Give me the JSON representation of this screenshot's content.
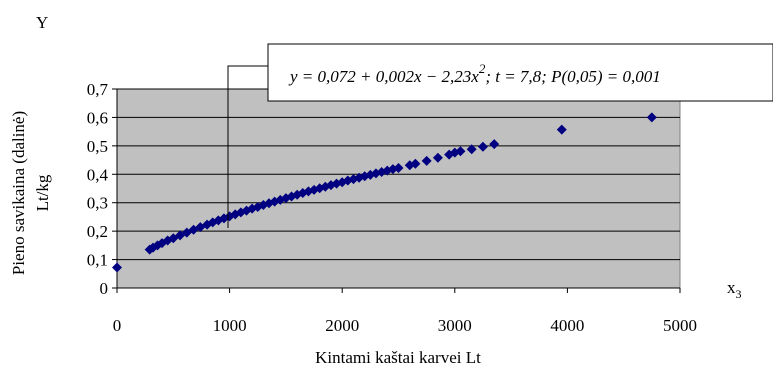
{
  "chart_data": {
    "type": "scatter",
    "title": "",
    "y_axis_letter": "Y",
    "ylabel_line1": "Pieno savikaina (dalinė)",
    "ylabel_line2": "Lt/kg",
    "xlabel": "Kintami kaštai karvei Lt",
    "x_variable": "x",
    "x_variable_subscript": "3",
    "equation": {
      "part1": "y = 0,072 + 0,002x − 2,23x",
      "exponent": "2",
      "part2": "; t = 7,8; P(0,05) = 0,001"
    },
    "xlim": [
      0,
      5000
    ],
    "ylim": [
      0,
      0.7
    ],
    "x_ticks": [
      0,
      1000,
      2000,
      3000,
      4000,
      5000
    ],
    "x_tick_labels": [
      "0",
      "1000",
      "2000",
      "3000",
      "4000",
      "5000"
    ],
    "y_ticks": [
      0,
      0.1,
      0.2,
      0.3,
      0.4,
      0.5,
      0.6,
      0.7
    ],
    "y_tick_labels": [
      "0",
      "0,1",
      "0,2",
      "0,3",
      "0,4",
      "0,5",
      "0,6",
      "0,7"
    ],
    "grid": "horizontal",
    "plot_background": "#c0c0c0",
    "marker_color": "#000080",
    "marker_shape": "diamond",
    "series": [
      {
        "points": [
          [
            0,
            0.072
          ],
          [
            290,
            0.135
          ],
          [
            320,
            0.142
          ],
          [
            360,
            0.15
          ],
          [
            400,
            0.158
          ],
          [
            450,
            0.167
          ],
          [
            500,
            0.175
          ],
          [
            560,
            0.185
          ],
          [
            620,
            0.195
          ],
          [
            680,
            0.205
          ],
          [
            740,
            0.214
          ],
          [
            800,
            0.223
          ],
          [
            850,
            0.231
          ],
          [
            900,
            0.238
          ],
          [
            950,
            0.245
          ],
          [
            1000,
            0.252
          ],
          [
            1050,
            0.259
          ],
          [
            1100,
            0.266
          ],
          [
            1150,
            0.272
          ],
          [
            1200,
            0.279
          ],
          [
            1250,
            0.285
          ],
          [
            1300,
            0.292
          ],
          [
            1350,
            0.298
          ],
          [
            1400,
            0.304
          ],
          [
            1450,
            0.31
          ],
          [
            1500,
            0.316
          ],
          [
            1550,
            0.322
          ],
          [
            1600,
            0.328
          ],
          [
            1650,
            0.334
          ],
          [
            1700,
            0.34
          ],
          [
            1750,
            0.345
          ],
          [
            1800,
            0.351
          ],
          [
            1850,
            0.356
          ],
          [
            1900,
            0.362
          ],
          [
            1950,
            0.367
          ],
          [
            2000,
            0.372
          ],
          [
            2050,
            0.378
          ],
          [
            2100,
            0.383
          ],
          [
            2150,
            0.388
          ],
          [
            2200,
            0.393
          ],
          [
            2250,
            0.398
          ],
          [
            2300,
            0.403
          ],
          [
            2350,
            0.408
          ],
          [
            2400,
            0.413
          ],
          [
            2450,
            0.418
          ],
          [
            2500,
            0.422
          ],
          [
            2600,
            0.432
          ],
          [
            2650,
            0.437
          ],
          [
            2750,
            0.447
          ],
          [
            2850,
            0.458
          ],
          [
            2950,
            0.469
          ],
          [
            3000,
            0.476
          ],
          [
            3050,
            0.481
          ],
          [
            3150,
            0.488
          ],
          [
            3250,
            0.497
          ],
          [
            3350,
            0.506
          ],
          [
            3950,
            0.557
          ],
          [
            4750,
            0.6
          ]
        ]
      }
    ]
  }
}
